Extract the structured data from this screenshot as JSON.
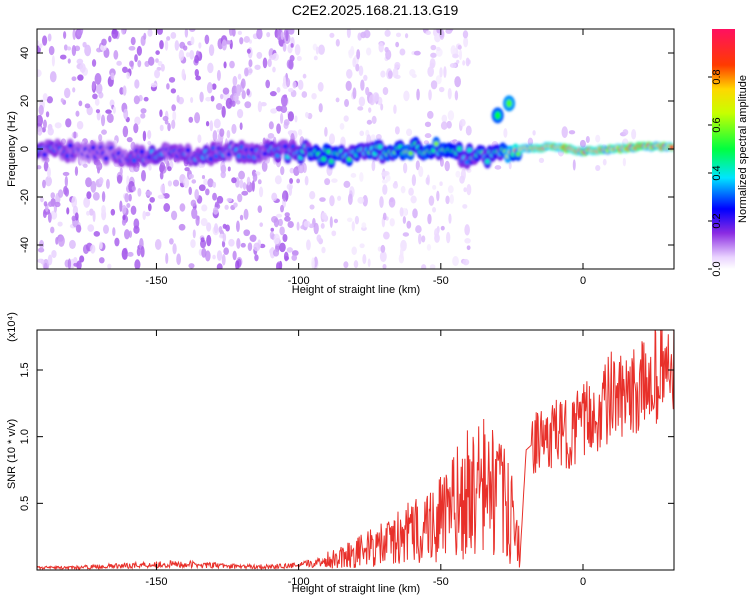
{
  "title": "C2E2.2025.168.21.13.G19",
  "chart_data": [
    {
      "type": "heatmap",
      "xlabel": "Height of straight line (km)",
      "ylabel": "Frequency (Hz)",
      "xlim": [
        -192,
        32
      ],
      "ylim": [
        -50,
        50
      ],
      "xticks": [
        -150,
        -100,
        -50,
        0
      ],
      "xtick_labels": [
        "-150",
        "-100",
        "-50",
        "0"
      ],
      "yticks": [
        -40,
        -20,
        0,
        20,
        40
      ],
      "ytick_labels": [
        "-40",
        "-20",
        "0",
        "20",
        "40"
      ],
      "colorbar": {
        "label": "Normalized spectral amplitude",
        "range": [
          0,
          1
        ],
        "ticks": [
          0.0,
          0.2,
          0.4,
          0.6,
          0.8
        ],
        "tick_labels": [
          "0.0",
          "0.2",
          "0.4",
          "0.6",
          "0.8"
        ]
      },
      "ridge": [
        {
          "x": -190,
          "y": 0,
          "amp": 0.3
        },
        {
          "x": -180,
          "y": -1,
          "amp": 0.25
        },
        {
          "x": -165,
          "y": -2,
          "amp": 0.25
        },
        {
          "x": -155,
          "y": -3,
          "amp": 0.3
        },
        {
          "x": -145,
          "y": -2,
          "amp": 0.3
        },
        {
          "x": -130,
          "y": -2,
          "amp": 0.3
        },
        {
          "x": -115,
          "y": -1,
          "amp": 0.3
        },
        {
          "x": -100,
          "y": -1,
          "amp": 0.35
        },
        {
          "x": -90,
          "y": -3,
          "amp": 0.5
        },
        {
          "x": -80,
          "y": -2,
          "amp": 0.45
        },
        {
          "x": -70,
          "y": -1,
          "amp": 0.5
        },
        {
          "x": -60,
          "y": 0,
          "amp": 0.55
        },
        {
          "x": -50,
          "y": 0,
          "amp": 0.5
        },
        {
          "x": -42,
          "y": -3,
          "amp": 0.4
        },
        {
          "x": -30,
          "y": -3,
          "amp": 0.4
        },
        {
          "x": -22,
          "y": 0,
          "amp": 0.8
        },
        {
          "x": -10,
          "y": 1,
          "amp": 0.85
        },
        {
          "x": 0,
          "y": -1,
          "amp": 0.85
        },
        {
          "x": 10,
          "y": 0,
          "amp": 0.85
        },
        {
          "x": 20,
          "y": 1,
          "amp": 0.9
        },
        {
          "x": 30,
          "y": 1,
          "amp": 0.9
        }
      ],
      "feature_branch": [
        {
          "x": -30,
          "y": 14,
          "amp": 0.5
        },
        {
          "x": -26,
          "y": 19,
          "amp": 0.55
        }
      ]
    },
    {
      "type": "line",
      "xlabel": "Height of straight line (km)",
      "ylabel": "SNR (10 * v/v)",
      "y_scale_label": "(x10⁴)",
      "xlim": [
        -192,
        32
      ],
      "ylim": [
        0,
        1.8
      ],
      "xticks": [
        -150,
        -100,
        -50,
        0
      ],
      "xtick_labels": [
        "-150",
        "-100",
        "-50",
        "0"
      ],
      "yticks": [
        0.5,
        1.0,
        1.5
      ],
      "ytick_labels": [
        "0.5",
        "1.0",
        "1.5"
      ],
      "color": "#e8302a",
      "series": [
        {
          "x": [
            -192,
            -180,
            -170,
            -160,
            -150,
            -140,
            -130,
            -120,
            -110,
            -100,
            -90,
            -80,
            -70,
            -60,
            -55,
            -50,
            -45,
            -40,
            -35,
            -30,
            -25,
            -22,
            -20,
            -15,
            -10,
            -5,
            0,
            5,
            10,
            15,
            20,
            25,
            30
          ],
          "y": [
            0.02,
            0.02,
            0.03,
            0.04,
            0.05,
            0.05,
            0.04,
            0.03,
            0.03,
            0.04,
            0.08,
            0.14,
            0.2,
            0.3,
            0.35,
            0.4,
            0.5,
            0.6,
            0.65,
            0.6,
            0.4,
            0.15,
            0.9,
            1.0,
            1.05,
            1.05,
            1.15,
            1.2,
            1.35,
            1.3,
            1.4,
            1.5,
            1.55
          ],
          "peak": [
            -192,
            -180,
            -170,
            -160,
            -150,
            -140,
            -130,
            -120,
            -110,
            -100,
            -90,
            -80,
            -70,
            -60,
            -55,
            -50,
            -45,
            -40,
            -35,
            -30,
            -25,
            -22,
            -20,
            -15,
            -10,
            -5,
            0,
            5,
            10,
            15,
            20,
            25,
            30
          ]
        }
      ]
    }
  ]
}
